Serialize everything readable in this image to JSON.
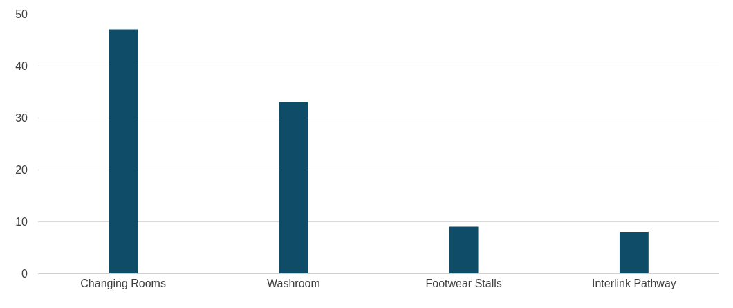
{
  "chart_data": {
    "type": "bar",
    "categories": [
      "Changing Rooms",
      "Washroom",
      "Footwear Stalls",
      "Interlink Pathway"
    ],
    "values": [
      47,
      33,
      9,
      8
    ],
    "color": "#0f4c68",
    "ylim": [
      0,
      50
    ],
    "yticks": [
      0,
      10,
      20,
      30,
      40,
      50
    ],
    "grid": "y"
  }
}
